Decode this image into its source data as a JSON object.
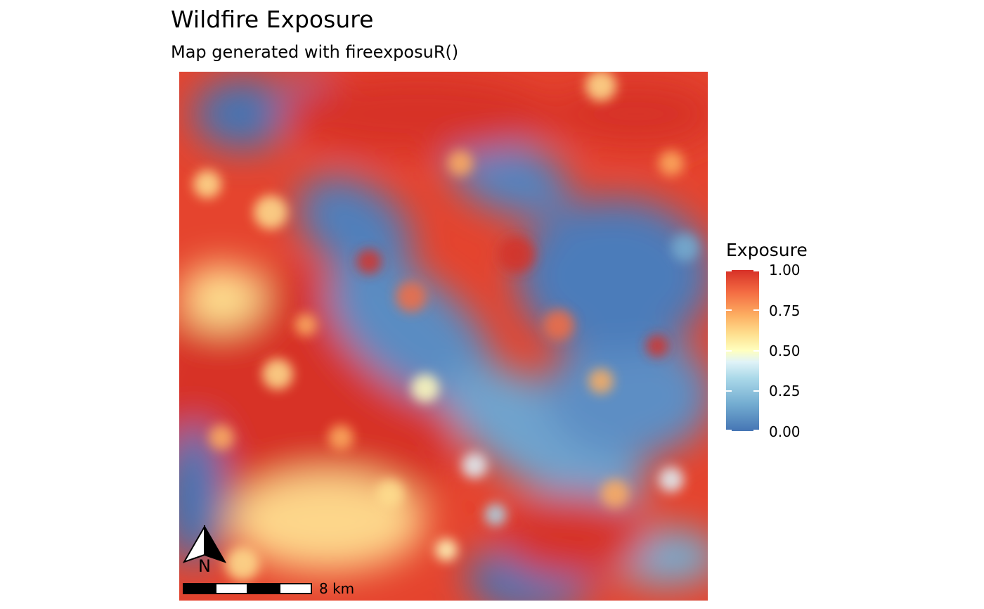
{
  "map": {
    "title": "Wildfire Exposure",
    "subtitle": "Map generated with fireexposuR()",
    "north_arrow_label": "N",
    "scale_bar_label": "8 km",
    "colors": {
      "low": "#4575b4",
      "mid_low": "#abd9e9",
      "mid": "#ffffbf",
      "mid_high": "#fdae61",
      "high": "#d73027"
    }
  },
  "legend": {
    "title": "Exposure",
    "range": [
      0,
      1
    ],
    "labels": [
      "1.00",
      "0.75",
      "0.50",
      "0.25",
      "0.00"
    ]
  }
}
